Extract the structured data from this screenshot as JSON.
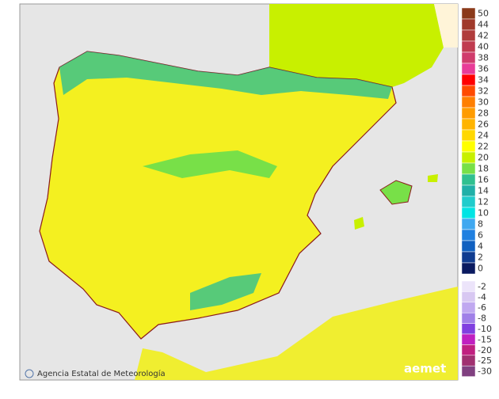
{
  "legend": {
    "entries": [
      {
        "label": "50",
        "color": "#8b3a1a"
      },
      {
        "label": "44",
        "color": "#a03a2a"
      },
      {
        "label": "42",
        "color": "#b03c3c"
      },
      {
        "label": "40",
        "color": "#c03c50"
      },
      {
        "label": "38",
        "color": "#d03c6c"
      },
      {
        "label": "36",
        "color": "#e83c98"
      },
      {
        "label": "34",
        "color": "#ff0000"
      },
      {
        "label": "32",
        "color": "#ff4a00"
      },
      {
        "label": "30",
        "color": "#ff7f00"
      },
      {
        "label": "28",
        "color": "#ff9c00"
      },
      {
        "label": "26",
        "color": "#ffb400"
      },
      {
        "label": "24",
        "color": "#ffd800"
      },
      {
        "label": "22",
        "color": "#ffff00"
      },
      {
        "label": "20",
        "color": "#c8f000"
      },
      {
        "label": "18",
        "color": "#78e048"
      },
      {
        "label": "16",
        "color": "#30c090"
      },
      {
        "label": "14",
        "color": "#20b0a8"
      },
      {
        "label": "12",
        "color": "#20cccc"
      },
      {
        "label": "10",
        "color": "#00e4e4"
      },
      {
        "label": "8",
        "color": "#40a8f0"
      },
      {
        "label": "6",
        "color": "#2080e0"
      },
      {
        "label": "4",
        "color": "#1060c0"
      },
      {
        "label": "2",
        "color": "#103c90"
      },
      {
        "label": "0",
        "color": "#0a1a60"
      }
    ],
    "negative_entries": [
      {
        "label": "-2",
        "color": "#ece4fa"
      },
      {
        "label": "-4",
        "color": "#d8c8f2"
      },
      {
        "label": "-6",
        "color": "#c0a8f0"
      },
      {
        "label": "-8",
        "color": "#a080e8"
      },
      {
        "label": "-10",
        "color": "#8040e0"
      },
      {
        "label": "-15",
        "color": "#c020c0"
      },
      {
        "label": "-20",
        "color": "#c02080"
      },
      {
        "label": "-25",
        "color": "#a03070"
      },
      {
        "label": "-30",
        "color": "#804080"
      }
    ]
  },
  "credit": "Agencia Estatal de Meteorología",
  "logo": "aemet"
}
